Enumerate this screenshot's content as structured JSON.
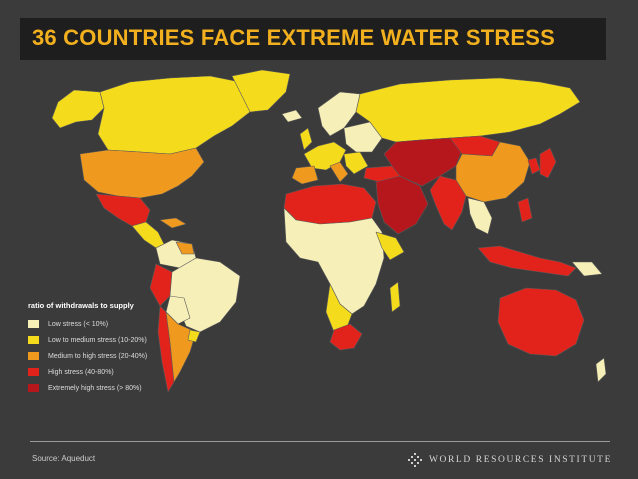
{
  "header": {
    "title": "36 COUNTRIES FACE EXTREME WATER STRESS"
  },
  "legend": {
    "title": "ratio of withdrawals to supply",
    "items": [
      {
        "label": "Low stress (< 10%)",
        "color": "#f7efb8"
      },
      {
        "label": "Low to medium stress (10-20%)",
        "color": "#f4dc1c"
      },
      {
        "label": "Medium to high stress (20-40%)",
        "color": "#ef9a1f"
      },
      {
        "label": "High stress (40-80%)",
        "color": "#e2231c"
      },
      {
        "label": "Extremely high stress (> 80%)",
        "color": "#b5171c"
      }
    ]
  },
  "footer": {
    "source": "Source: Aqueduct",
    "organization": "WORLD RESOURCES INSTITUTE"
  },
  "colors": {
    "background": "#3b3b3b",
    "title_bar": "#1e1e1e",
    "title_text": "#f2b01e",
    "border": "#6a6a6a"
  }
}
